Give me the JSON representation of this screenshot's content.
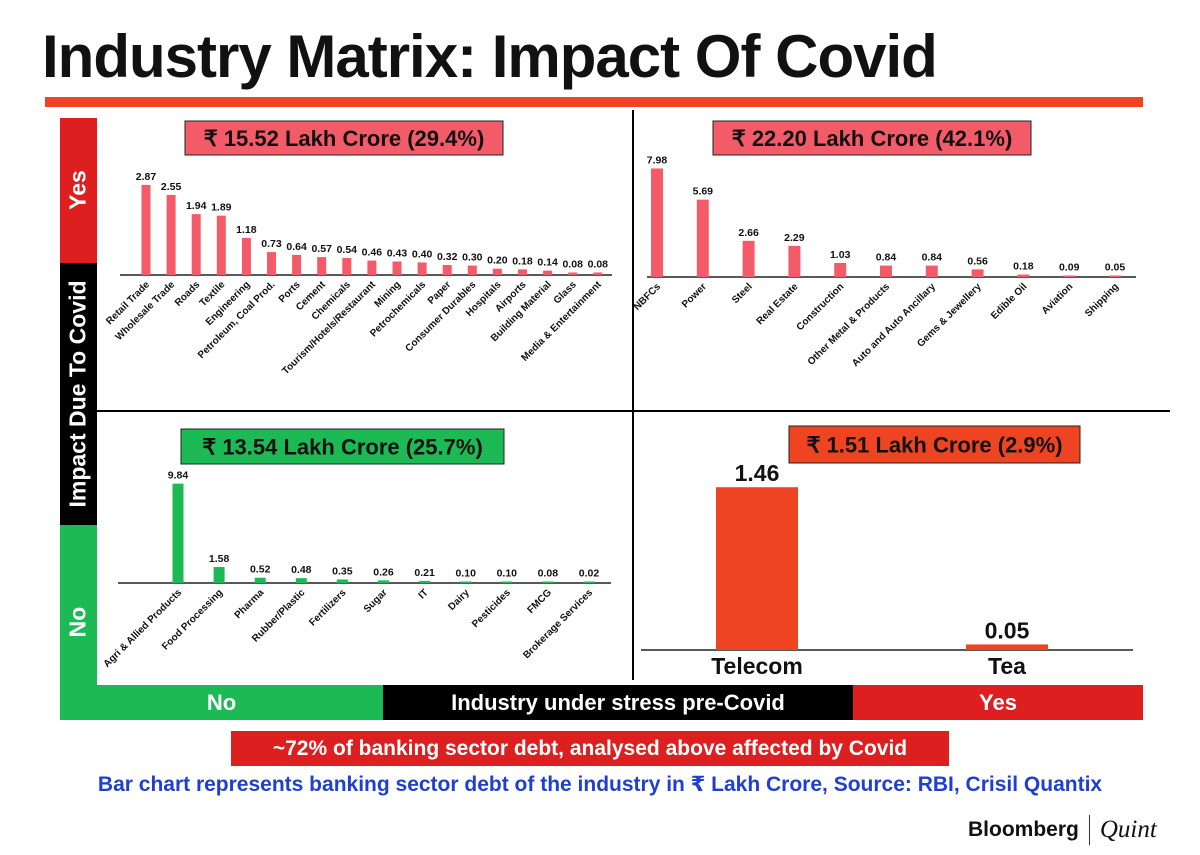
{
  "title": "Industry Matrix: Impact Of Covid",
  "y_axis": {
    "title": "Impact Due To Covid",
    "yes_label": "Yes",
    "no_label": "No"
  },
  "x_axis": {
    "title": "Industry under stress pre-Covid",
    "no_label": "No",
    "yes_label": "Yes"
  },
  "colors": {
    "accent": "#ee4422",
    "red": "#dd1f1f",
    "green": "#1db954",
    "pink": "#f45b69",
    "orange": "#ee4422",
    "blue": "#1f3fd0"
  },
  "footer": {
    "affected_note": "~72% of banking sector debt, analysed above affected by Covid",
    "source_note": "Bar chart represents banking sector debt of the industry in ₹  Lakh Crore, Source: RBI, Crisil Quantix",
    "logo_left": "Bloomberg",
    "logo_right": "Quint"
  },
  "chart_data": [
    {
      "type": "bar",
      "quadrant": "impact-yes / pre-stress-no",
      "title": "₹ 15.52 Lakh Crore (29.4%)",
      "ylabel": "₹ Lakh Crore",
      "categories": [
        "Retail Trade",
        "Wholesale Trade",
        "Roads",
        "Textile",
        "Engineering",
        "Petroleum, Coal Prod.",
        "Ports",
        "Cement",
        "Chemicals",
        "Tourism/Hotels/Restaurant",
        "Mining",
        "Petrochemicals",
        "Paper",
        "Consumer Durables",
        "Hospitals",
        "Airports",
        "Building Material",
        "Glass",
        "Media & Entertainment"
      ],
      "values": [
        2.87,
        2.55,
        1.94,
        1.89,
        1.18,
        0.73,
        0.64,
        0.57,
        0.54,
        0.46,
        0.43,
        0.4,
        0.32,
        0.3,
        0.2,
        0.18,
        0.14,
        0.08,
        0.08
      ],
      "value_labels": [
        "2.87",
        "2.55",
        "1.94",
        "1.89",
        "1.18",
        "0.73",
        "0.64",
        "0.57",
        "0.54",
        "0.46",
        "0.43",
        "0.40",
        "0.32",
        "0.30",
        "0.20",
        "0.18",
        "0.14",
        "0.08",
        "0.08"
      ]
    },
    {
      "type": "bar",
      "quadrant": "impact-yes / pre-stress-yes",
      "title": "₹ 22.20 Lakh Crore (42.1%)",
      "ylabel": "₹ Lakh Crore",
      "categories": [
        "NBFCs",
        "Power",
        "Steel",
        "Real Estate",
        "Construction",
        "Other Metal & Products",
        "Auto and Auto Ancillary",
        "Gems & Jewellery",
        "Edible Oil",
        "Aviation",
        "Shipping"
      ],
      "values": [
        7.98,
        5.69,
        2.66,
        2.29,
        1.03,
        0.84,
        0.84,
        0.56,
        0.18,
        0.09,
        0.05
      ],
      "value_labels": [
        "7.98",
        "5.69",
        "2.66",
        "2.29",
        "1.03",
        "0.84",
        "0.84",
        "0.56",
        "0.18",
        "0.09",
        "0.05"
      ]
    },
    {
      "type": "bar",
      "quadrant": "impact-no / pre-stress-no",
      "title": "₹ 13.54 Lakh Crore (25.7%)",
      "ylabel": "₹ Lakh Crore",
      "categories": [
        "Agri & Allied Products",
        "Food Processing",
        "Pharma",
        "Rubber/Plastic",
        "Fertilizers",
        "Sugar",
        "IT",
        "Dairy",
        "Pesticides",
        "FMCG",
        "Brokerage Services"
      ],
      "values": [
        9.84,
        1.58,
        0.52,
        0.48,
        0.35,
        0.26,
        0.21,
        0.1,
        0.1,
        0.08,
        0.02
      ],
      "value_labels": [
        "9.84",
        "1.58",
        "0.52",
        "0.48",
        "0.35",
        "0.26",
        "0.21",
        "0.10",
        "0.10",
        "0.08",
        "0.02"
      ]
    },
    {
      "type": "bar",
      "quadrant": "impact-no / pre-stress-yes",
      "title": "₹ 1.51 Lakh Crore (2.9%)",
      "ylabel": "₹ Lakh Crore",
      "categories": [
        "Telecom",
        "Tea"
      ],
      "values": [
        1.46,
        0.05
      ],
      "value_labels": [
        "1.46",
        "0.05"
      ]
    }
  ]
}
